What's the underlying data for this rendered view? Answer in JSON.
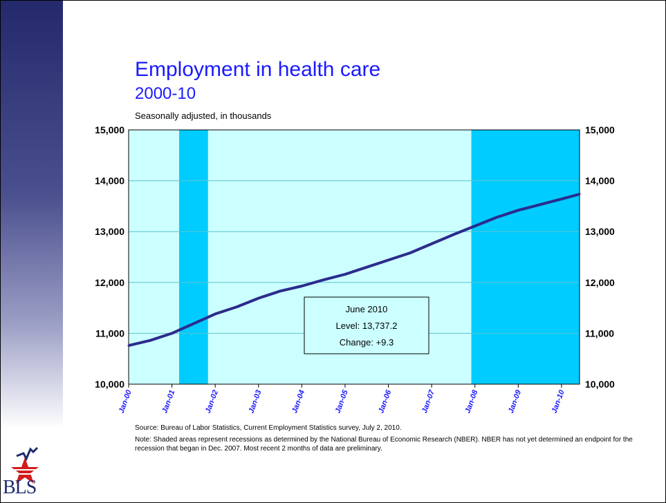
{
  "slide": {
    "title": "Employment in health care",
    "subtitle": "2000-10",
    "unit_label": "Seasonally adjusted, in thousands",
    "source": "Source:  Bureau of Labor Statistics, Current Employment Statistics survey, July 2, 2010.",
    "note": "Note: Shaded areas represent recessions as determined by the National Bureau of Economic Research (NBER). NBER has not yet determined an endpoint for the recession that began in Dec. 2007. Most recent 2 months of data are preliminary.",
    "logo_text": "BLS"
  },
  "colors": {
    "title": "#1a1aff",
    "plot_background": "#ccffff",
    "recession": "#00ccff",
    "line": "#2b2b8c",
    "x_tick_labels": "#1a1aff",
    "gridline": "#5fc4d0"
  },
  "chart_data": {
    "type": "line",
    "title": "Employment in health care",
    "subtitle": "2000-10",
    "ylabel": "Seasonally adjusted, in thousands",
    "ylim": [
      10000,
      15000
    ],
    "yticks": [
      "10,000",
      "11,000",
      "12,000",
      "13,000",
      "14,000",
      "15,000"
    ],
    "yticks_right": [
      "10,000",
      "11,000",
      "12,000",
      "13,000",
      "14,000",
      "15,000"
    ],
    "xrange": [
      "2000-01",
      "2010-06"
    ],
    "xticks": [
      "Jan-00",
      "Jan-01",
      "Jan-02",
      "Jan-03",
      "Jan-04",
      "Jan-05",
      "Jan-06",
      "Jan-07",
      "Jan-08",
      "Jan-09",
      "Jan-10"
    ],
    "grid": true,
    "legend": "none",
    "recessions": [
      {
        "start": "2001-03",
        "end": "2001-11"
      },
      {
        "start": "2007-12",
        "end": "2010-06"
      }
    ],
    "series": [
      {
        "x": [
          "2000-01",
          "2000-07",
          "2001-01",
          "2001-07",
          "2002-01",
          "2002-07",
          "2003-01",
          "2003-07",
          "2004-01",
          "2004-07",
          "2005-01",
          "2005-07",
          "2006-01",
          "2006-07",
          "2007-01",
          "2007-07",
          "2008-01",
          "2008-07",
          "2009-01",
          "2009-07",
          "2010-01",
          "2010-06"
        ],
        "values": [
          10760,
          10860,
          11000,
          11190,
          11380,
          11520,
          11690,
          11830,
          11930,
          12050,
          12160,
          12300,
          12440,
          12580,
          12760,
          12940,
          13110,
          13280,
          13420,
          13530,
          13640,
          13737
        ]
      }
    ],
    "annotation": {
      "line1": "June 2010",
      "line2": "Level: 13,737.2",
      "line3": "Change: +9.3"
    }
  }
}
